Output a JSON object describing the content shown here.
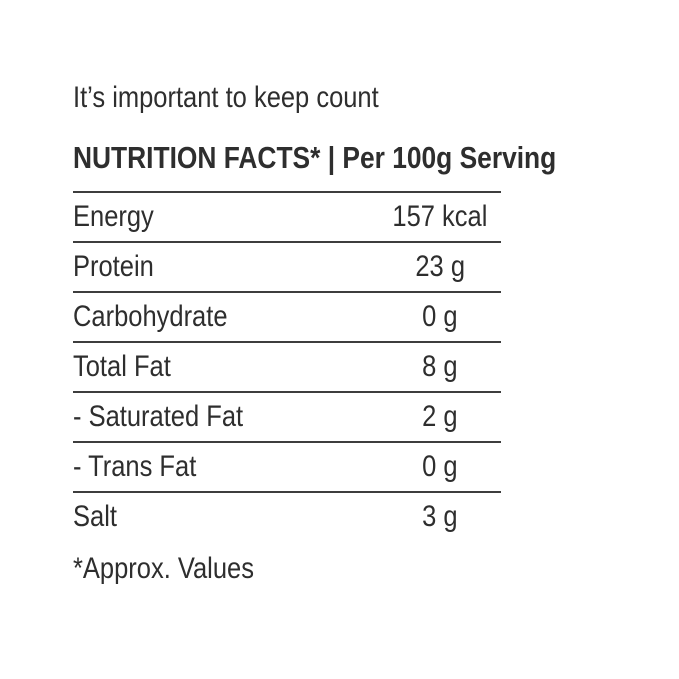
{
  "page": {
    "background_color": "#ffffff",
    "text_color": "#2e2e2e",
    "rule_color": "#3d3d3d"
  },
  "header": {
    "tagline": "It’s important to keep count"
  },
  "title": {
    "text": "NUTRITION FACTS* | Per 100g Serving"
  },
  "table": {
    "rows": [
      {
        "label": "Energy",
        "value": "157 kcal"
      },
      {
        "label": "Protein",
        "value": "23 g"
      },
      {
        "label": "Carbohydrate",
        "value": "0 g"
      },
      {
        "label": "Total Fat",
        "value": "8 g"
      },
      {
        "label": "- Saturated Fat",
        "value": "2 g"
      },
      {
        "label": "- Trans Fat",
        "value": "0 g"
      },
      {
        "label": "Salt",
        "value": "3 g"
      }
    ]
  },
  "footer": {
    "note": "*Approx. Values"
  }
}
